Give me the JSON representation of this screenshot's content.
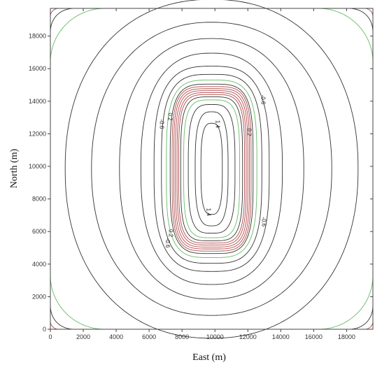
{
  "chart_data": {
    "type": "contour",
    "xlabel": "East (m)",
    "ylabel": "North (m)",
    "xlim": [
      0,
      19600
    ],
    "ylim": [
      0,
      19700
    ],
    "x_ticks": [
      0,
      2000,
      4000,
      6000,
      8000,
      10000,
      12000,
      14000,
      16000,
      18000
    ],
    "y_ticks": [
      0,
      2000,
      4000,
      6000,
      8000,
      10000,
      12000,
      14000,
      16000,
      18000
    ],
    "grid": false,
    "colors": {
      "black": "#333333",
      "green": "#66bb66",
      "red": "#b24a4a"
    },
    "contours": [
      {
        "color": "black",
        "cx": 9800,
        "cy": 9850,
        "hx": 8900,
        "hy": 10400,
        "n": 2.2
      },
      {
        "color": "black",
        "cx": 9800,
        "cy": 9850,
        "hx": 7300,
        "hy": 9000,
        "n": 2.2
      },
      {
        "color": "black",
        "cx": 9800,
        "cy": 9850,
        "hx": 5600,
        "hy": 8000,
        "n": 2.3
      },
      {
        "color": "black",
        "cx": 9800,
        "cy": 9850,
        "hx": 4300,
        "hy": 7100,
        "n": 2.5
      },
      {
        "color": "black",
        "cx": 9800,
        "cy": 9850,
        "hx": 3500,
        "hy": 6300,
        "n": 3.0
      },
      {
        "color": "black",
        "cx": 9800,
        "cy": 9850,
        "hx": 3050,
        "hy": 5800,
        "n": 3.3
      },
      {
        "color": "green",
        "cx": 9800,
        "cy": 9850,
        "hx": 2750,
        "hy": 5450,
        "n": 3.6
      },
      {
        "color": "black",
        "cx": 9800,
        "cy": 9850,
        "hx": 2520,
        "hy": 5200,
        "n": 3.9
      },
      {
        "color": "red",
        "cx": 9800,
        "cy": 9850,
        "hx": 2400,
        "hy": 5050,
        "n": 4.2
      },
      {
        "color": "red",
        "cx": 9800,
        "cy": 9850,
        "hx": 2300,
        "hy": 4920,
        "n": 4.3
      },
      {
        "color": "red",
        "cx": 9800,
        "cy": 9850,
        "hx": 2200,
        "hy": 4800,
        "n": 4.3
      },
      {
        "color": "red",
        "cx": 9800,
        "cy": 9850,
        "hx": 2100,
        "hy": 4680,
        "n": 4.2
      },
      {
        "color": "red",
        "cx": 9800,
        "cy": 9850,
        "hx": 2000,
        "hy": 4560,
        "n": 4.2
      },
      {
        "color": "black",
        "cx": 9800,
        "cy": 9850,
        "hx": 1880,
        "hy": 4420,
        "n": 4.0
      },
      {
        "color": "green",
        "cx": 9800,
        "cy": 9850,
        "hx": 1700,
        "hy": 4230,
        "n": 3.8
      },
      {
        "color": "black",
        "cx": 9800,
        "cy": 9850,
        "hx": 1420,
        "hy": 3950,
        "n": 3.4
      },
      {
        "color": "black",
        "cx": 9800,
        "cy": 9850,
        "hx": 1000,
        "hy": 3500,
        "n": 3.0
      },
      {
        "color": "black",
        "cx": 9800,
        "cy": 9850,
        "hx": 650,
        "hy": 2800,
        "n": 3.0
      }
    ],
    "corner_contours": [
      {
        "color": "green",
        "corner": "all",
        "r": 3300,
        "n": 2.0
      },
      {
        "color": "black",
        "corner": "all",
        "r": 1500,
        "n": 2.2
      },
      {
        "color": "red",
        "corner": "all",
        "r": 500,
        "n": 2.0
      }
    ],
    "contour_labels": [
      {
        "text": "1.4",
        "x": 10150,
        "y": 12600,
        "rotate": 90
      },
      {
        "text": "1.4",
        "x": 9600,
        "y": 7200,
        "rotate": 90
      },
      {
        "text": "0.2",
        "x": 12050,
        "y": 12100,
        "rotate": 90
      },
      {
        "text": "0.2",
        "x": 7300,
        "y": 5900,
        "rotate": 90
      },
      {
        "text": "0.2",
        "x": 7250,
        "y": 13050,
        "rotate": 90
      },
      {
        "text": "-0.6",
        "x": 6750,
        "y": 12600,
        "rotate": 90
      },
      {
        "text": "-0.6",
        "x": 12900,
        "y": 14100,
        "rotate": 90
      },
      {
        "text": "-0.6",
        "x": 12950,
        "y": 6600,
        "rotate": 90
      },
      {
        "text": "-0.6",
        "x": 7100,
        "y": 5300,
        "rotate": 90
      }
    ]
  }
}
